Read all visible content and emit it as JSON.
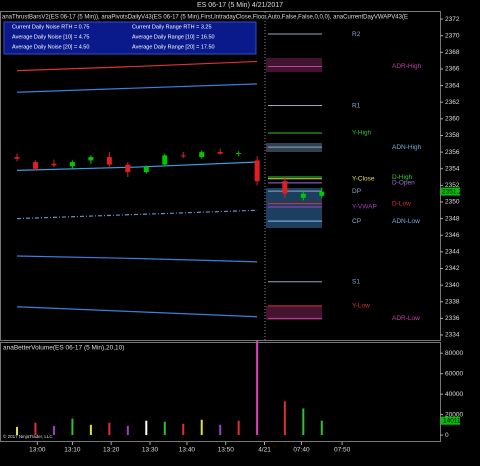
{
  "title": "ES 06-17 (5 Min)  4/21/2017",
  "indicators": "anaThrustBarsV2(ES 06-17 (5 Min)), anaPivotsDailyV43(ES 06-17 (5 Min),First,IntradayClose,Floor,Auto,False,False,0,0,0), anaCurrentDayVWAPV43(E",
  "info_box": [
    "Current Daily Noise RTH = 0.75",
    "Current Daily Range RTH = 3.25",
    "Average Daily Noise [10] = 4.75",
    "Average Daily Range [10] = 16.50",
    "Average Daily Noise [20] = 4.50",
    "Average Daily Range [20] = 17.50"
  ],
  "copyright": "© 2017 NinjaTrader, LLC",
  "chart_data": [
    {
      "type": "candlestick",
      "x": [
        0,
        1,
        2,
        3,
        4,
        5,
        6,
        7,
        8,
        9,
        10,
        11,
        12,
        13,
        14.5,
        15.5,
        16.5
      ],
      "open": [
        2355.4,
        2354.8,
        2354.6,
        2354.3,
        2355.0,
        2355.4,
        2354.5,
        2353.6,
        2354.5,
        2355.6,
        2355.4,
        2356.0,
        2355.8,
        2355.0,
        2352.5,
        2350.5,
        2350.75
      ],
      "high": [
        2355.8,
        2355.0,
        2355.1,
        2355.0,
        2355.6,
        2356.0,
        2354.8,
        2354.4,
        2355.8,
        2356.0,
        2356.2,
        2356.4,
        2356.1,
        2355.5,
        2353.0,
        2351.4,
        2351.75
      ],
      "low": [
        2354.9,
        2353.8,
        2354.2,
        2354.0,
        2354.6,
        2354.2,
        2353.0,
        2353.4,
        2354.3,
        2355.3,
        2355.2,
        2355.7,
        2355.5,
        2352.0,
        2350.5,
        2350.2,
        2350.5
      ],
      "close": [
        2355.2,
        2354.0,
        2354.4,
        2354.8,
        2355.4,
        2354.5,
        2353.6,
        2354.2,
        2355.6,
        2355.5,
        2356.0,
        2355.8,
        2355.9,
        2352.5,
        2351.0,
        2351.0,
        2351.25
      ],
      "up_color": "#00c800",
      "down_color": "#e02020",
      "series": [
        {
          "color": "#e03030",
          "x": [
            0,
            6.5,
            13
          ],
          "values": [
            2365.8,
            2366.3,
            2366.9
          ]
        },
        {
          "color": "#3a7fe0",
          "x": [
            0,
            6.5,
            13
          ],
          "values": [
            2363.2,
            2363.7,
            2364.2
          ]
        },
        {
          "color": "#3a9fe0",
          "x": [
            0,
            6.5,
            13
          ],
          "values": [
            2353.8,
            2354.2,
            2354.8
          ]
        },
        {
          "color": "#6a8fd0",
          "x": [
            0,
            6.5,
            13
          ],
          "values": [
            2348.0,
            2348.5,
            2349.0
          ],
          "dashed": true
        },
        {
          "color": "#3a7fe0",
          "x": [
            0,
            6.5,
            13
          ],
          "values": [
            2343.5,
            2343.2,
            2342.8
          ]
        },
        {
          "color": "#3a7fe0",
          "x": [
            0,
            6.5,
            13
          ],
          "values": [
            2337.4,
            2336.8,
            2336.2
          ]
        }
      ],
      "levels": [
        {
          "name": "R2",
          "value": 2370.2,
          "color": "#8fa8c8"
        },
        {
          "name": "ADR-High",
          "value": 2366.3,
          "color": "#c040a0"
        },
        {
          "name": "R1",
          "value": 2361.6,
          "color": "#8fa8c8"
        },
        {
          "name": "Y-High",
          "value": 2358.3,
          "color": "#30c030"
        },
        {
          "name": "ADN-High",
          "value": 2356.6,
          "color": "#70b0d8"
        },
        {
          "name": "Y-Close",
          "value": 2352.8,
          "color": "#e0e040"
        },
        {
          "name": "D-High",
          "value": 2353.0,
          "color": "#30d030"
        },
        {
          "name": "D-Open",
          "value": 2352.3,
          "color": "#a070e0"
        },
        {
          "name": "DP",
          "value": 2351.3,
          "color": "#8fa8c8"
        },
        {
          "name": "D-Low",
          "value": 2349.8,
          "color": "#e03030"
        },
        {
          "name": "Y-VWAP",
          "value": 2349.4,
          "color": "#a040c0"
        },
        {
          "name": "CP",
          "value": 2347.7,
          "color": "#8fa8c8"
        },
        {
          "name": "ADN-Low",
          "value": 2347.7,
          "color": "#70b0d8"
        },
        {
          "name": "S1",
          "value": 2340.4,
          "color": "#8fa8c8"
        },
        {
          "name": "Y-Low",
          "value": 2337.5,
          "color": "#e03030"
        },
        {
          "name": "ADR-Low",
          "value": 2336.0,
          "color": "#c040a0"
        }
      ],
      "last_color": "#00c000",
      "xlim": [
        -0.92,
        22.9
      ],
      "ylim": [
        2333.4,
        2372.85
      ],
      "yticks": [
        2334,
        2336,
        2338,
        2340,
        2342,
        2344,
        2346,
        2348,
        2350,
        2352,
        2354,
        2356,
        2358,
        2360,
        2362,
        2364,
        2366,
        2368,
        2370,
        2372
      ]
    },
    {
      "type": "bar",
      "label": "anaBetterVolume(ES 06-17 (5 Min),20,10)",
      "x": [
        0,
        1,
        2,
        3,
        4,
        5,
        6,
        7,
        8,
        9,
        10,
        11,
        12,
        13,
        14.5,
        15.5,
        16.5
      ],
      "values": [
        8000,
        12000,
        9000,
        16000,
        10000,
        12000,
        9000,
        14000,
        13000,
        11000,
        15000,
        10000,
        14000,
        92000,
        33000,
        26000,
        14011
      ],
      "colors": [
        "#e0e040",
        "#e03030",
        "#a040c0",
        "#30c030",
        "#e0e040",
        "#e03030",
        "#a040c0",
        "#ffffff",
        "#30c030",
        "#e03030",
        "#e0e040",
        "#a040c0",
        "#e03030",
        "#e040c0",
        "#e03030",
        "#30c030",
        "#30c030"
      ],
      "last_color": "#00c000",
      "xlim": [
        -0.92,
        22.9
      ],
      "ylim": [
        -6800,
        90000
      ],
      "yticks": [
        0,
        20000,
        40000,
        60000,
        80000
      ],
      "xticks": [
        {
          "value": 1.1,
          "label": "13:00"
        },
        {
          "value": 3.0,
          "label": "13:10"
        },
        {
          "value": 5.1,
          "label": "13:20"
        },
        {
          "value": 7.2,
          "label": "13:30"
        },
        {
          "value": 9.2,
          "label": "13:40"
        },
        {
          "value": 11.3,
          "label": "13:50"
        },
        {
          "value": 13.4,
          "label": "4/21"
        },
        {
          "value": 15.4,
          "label": "07:40"
        },
        {
          "value": 17.6,
          "label": "07:50"
        }
      ]
    }
  ]
}
